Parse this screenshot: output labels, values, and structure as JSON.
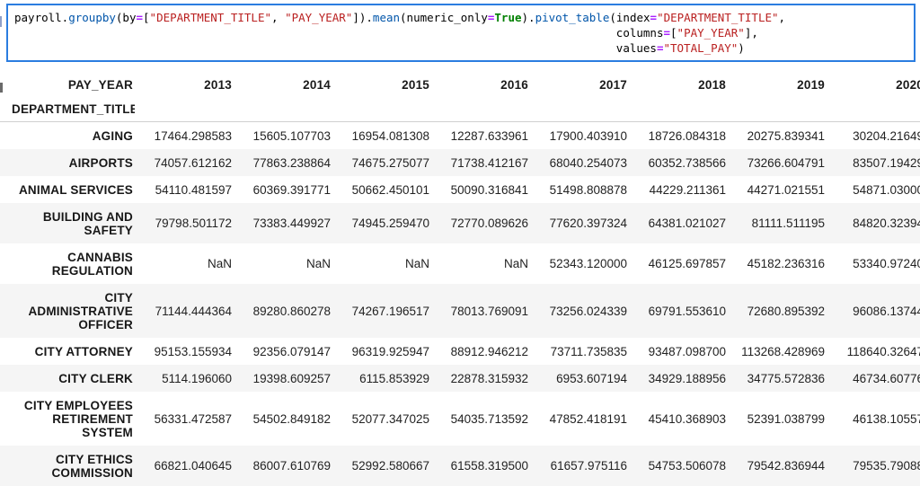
{
  "colors": {
    "cell_border": "#2b7de0",
    "stripe": "#f5f5f5",
    "code_property": "#0055aa",
    "code_string": "#ba2121",
    "code_operator": "#aa22ff",
    "code_keyword": "#008000"
  },
  "code_cell": {
    "lines": [
      {
        "indent": 0,
        "tokens": [
          {
            "t": "payroll.",
            "c": "plain"
          },
          {
            "t": "groupby",
            "c": "prop"
          },
          {
            "t": "(by",
            "c": "plain"
          },
          {
            "t": "=",
            "c": "op"
          },
          {
            "t": "[",
            "c": "plain"
          },
          {
            "t": "\"DEPARTMENT_TITLE\"",
            "c": "str"
          },
          {
            "t": ", ",
            "c": "plain"
          },
          {
            "t": "\"PAY_YEAR\"",
            "c": "str"
          },
          {
            "t": "]).",
            "c": "plain"
          },
          {
            "t": "mean",
            "c": "prop"
          },
          {
            "t": "(numeric_only",
            "c": "plain"
          },
          {
            "t": "=",
            "c": "op"
          },
          {
            "t": "True",
            "c": "kw"
          },
          {
            "t": ").",
            "c": "plain"
          },
          {
            "t": "pivot_table",
            "c": "prop"
          },
          {
            "t": "(index",
            "c": "plain"
          },
          {
            "t": "=",
            "c": "op"
          },
          {
            "t": "\"DEPARTMENT_TITLE\"",
            "c": "str"
          },
          {
            "t": ",",
            "c": "plain"
          }
        ]
      },
      {
        "indent": 89,
        "tokens": [
          {
            "t": "columns",
            "c": "plain"
          },
          {
            "t": "=",
            "c": "op"
          },
          {
            "t": "[",
            "c": "plain"
          },
          {
            "t": "\"PAY_YEAR\"",
            "c": "str"
          },
          {
            "t": "],",
            "c": "plain"
          }
        ]
      },
      {
        "indent": 89,
        "tokens": [
          {
            "t": "values",
            "c": "plain"
          },
          {
            "t": "=",
            "c": "op"
          },
          {
            "t": "\"TOTAL_PAY\"",
            "c": "str"
          },
          {
            "t": ")",
            "c": "plain"
          }
        ]
      }
    ]
  },
  "table": {
    "columns_name": "PAY_YEAR",
    "index_name": "DEPARTMENT_TITLE",
    "years": [
      "2013",
      "2014",
      "2015",
      "2016",
      "2017",
      "2018",
      "2019",
      "2020"
    ],
    "rows": [
      {
        "label": "AGING",
        "values": [
          "17464.298583",
          "15605.107703",
          "16954.081308",
          "12287.633961",
          "17900.403910",
          "18726.084318",
          "20275.839341",
          "30204.21649"
        ]
      },
      {
        "label": "AIRPORTS",
        "values": [
          "74057.612162",
          "77863.238864",
          "74675.275077",
          "71738.412167",
          "68040.254073",
          "60352.738566",
          "73266.604791",
          "83507.19429"
        ]
      },
      {
        "label": "ANIMAL SERVICES",
        "values": [
          "54110.481597",
          "60369.391771",
          "50662.450101",
          "50090.316841",
          "51498.808878",
          "44229.211361",
          "44271.021551",
          "54871.03000"
        ]
      },
      {
        "label": "BUILDING AND SAFETY",
        "values": [
          "79798.501172",
          "73383.449927",
          "74945.259470",
          "72770.089626",
          "77620.397324",
          "64381.021027",
          "81111.511195",
          "84820.32394"
        ]
      },
      {
        "label": "CANNABIS REGULATION",
        "values": [
          "NaN",
          "NaN",
          "NaN",
          "NaN",
          "52343.120000",
          "46125.697857",
          "45182.236316",
          "53340.97240"
        ]
      },
      {
        "label": "CITY ADMINISTRATIVE OFFICER",
        "values": [
          "71144.444364",
          "89280.860278",
          "74267.196517",
          "78013.769091",
          "73256.024339",
          "69791.553610",
          "72680.895392",
          "96086.13744"
        ]
      },
      {
        "label": "CITY ATTORNEY",
        "values": [
          "95153.155934",
          "92356.079147",
          "96319.925947",
          "88912.946212",
          "73711.735835",
          "93487.098700",
          "113268.428969",
          "118640.32647"
        ]
      },
      {
        "label": "CITY CLERK",
        "values": [
          "5114.196060",
          "19398.609257",
          "6115.853929",
          "22878.315932",
          "6953.607194",
          "34929.188956",
          "34775.572836",
          "46734.60776"
        ]
      },
      {
        "label": "CITY EMPLOYEES RETIREMENT SYSTEM",
        "values": [
          "56331.472587",
          "54502.849182",
          "52077.347025",
          "54035.713592",
          "47852.418191",
          "45410.368903",
          "52391.038799",
          "46138.10557"
        ]
      },
      {
        "label": "CITY ETHICS COMMISSION",
        "values": [
          "66821.040645",
          "86007.610769",
          "52992.580667",
          "61558.319500",
          "61657.975116",
          "54753.506078",
          "79542.836944",
          "79535.79088"
        ]
      }
    ]
  }
}
